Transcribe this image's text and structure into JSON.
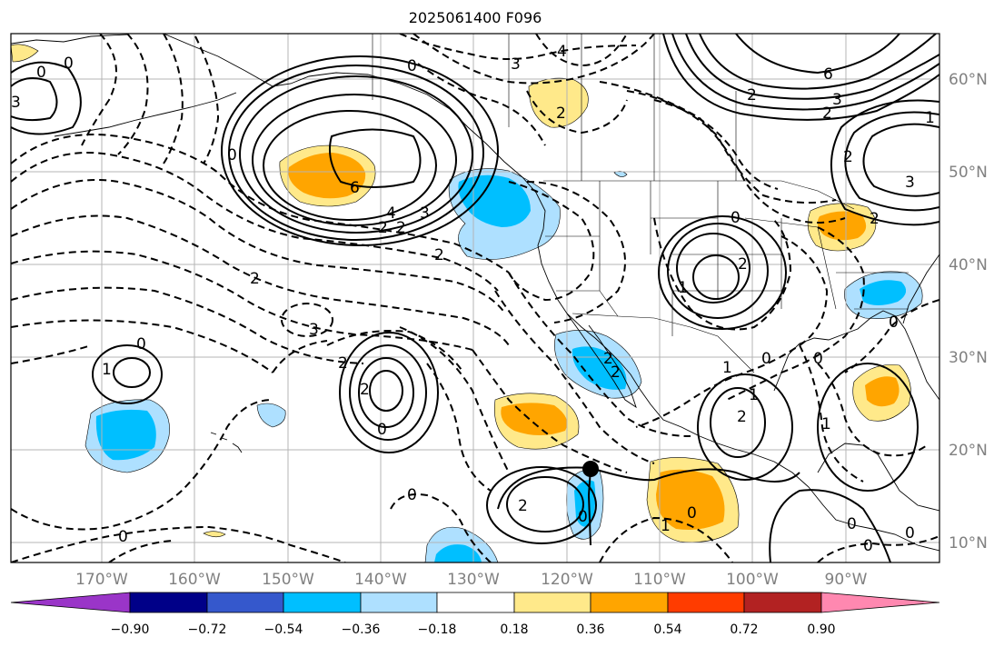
{
  "title": "2025061400 F096",
  "colors": {
    "neg_090": "#9a35c8",
    "neg_072": "#000088",
    "neg_054": "#3558cc",
    "neg_036": "#00bfff",
    "neg_018": "#aee0ff",
    "neutral": "#ffffff",
    "pos_018": "#ffe98a",
    "pos_036": "#ffa500",
    "pos_054": "#ff3c00",
    "pos_072": "#b22222",
    "pos_090": "#ff88b0",
    "contour": "#000000",
    "grid": "#b4b4b4",
    "coast": "#000000"
  },
  "axes": {
    "lat_labels": [
      "60°N",
      "50°N",
      "40°N",
      "30°N",
      "20°N",
      "10°N"
    ],
    "lon_labels": [
      "170°W",
      "160°W",
      "150°W",
      "140°W",
      "130°W",
      "120°W",
      "110°W",
      "100°W",
      "90°W"
    ]
  },
  "colorbar": {
    "ticks": [
      "−0.90",
      "−0.72",
      "−0.54",
      "−0.36",
      "−0.18",
      "0.18",
      "0.36",
      "0.54",
      "0.72",
      "0.90"
    ]
  },
  "contour_labels": [
    "0",
    "0",
    "4",
    "3",
    "6",
    "2",
    "3",
    "2",
    "3",
    "0",
    "2",
    "6",
    "4",
    "3",
    "2",
    "2",
    "2",
    "0",
    "1",
    "2",
    "2",
    "0",
    "1",
    "3",
    "3",
    "2",
    "0",
    "2",
    "2",
    "0",
    "1",
    "2",
    "2",
    "1",
    "0",
    "1",
    "1",
    "0",
    "0",
    "0",
    "2",
    "0",
    "0",
    "2",
    "1",
    "0",
    "0",
    "0",
    "0",
    "2"
  ],
  "markers": [
    {
      "name": "storm-center",
      "lat": 18.0,
      "lon": -117.5
    }
  ]
}
